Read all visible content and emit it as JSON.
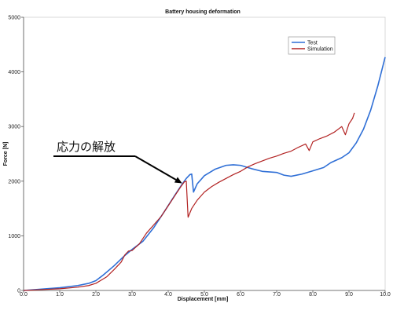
{
  "chart_data": {
    "type": "line",
    "title": "Battery housing deformation",
    "xlabel": "Displacement [mm]",
    "ylabel": "Force [N]",
    "xlim": [
      0,
      10
    ],
    "ylim": [
      0,
      5000
    ],
    "x_ticks": [
      "0.0",
      "1.0",
      "2.0",
      "3.0",
      "4.0",
      "5.0",
      "6.0",
      "7.0",
      "8.0",
      "9.0",
      "10.0"
    ],
    "y_ticks": [
      "0",
      "1000",
      "2000",
      "3000",
      "4000",
      "5000"
    ],
    "grid": false,
    "legend_position": "top-right",
    "annotation": {
      "text": "応力の解放",
      "points_to": [
        4.45,
        1990
      ]
    },
    "series": [
      {
        "name": "Test",
        "color": "#2f6fd6",
        "points": [
          [
            0.0,
            0
          ],
          [
            0.5,
            25
          ],
          [
            1.0,
            50
          ],
          [
            1.5,
            90
          ],
          [
            1.8,
            130
          ],
          [
            2.0,
            180
          ],
          [
            2.2,
            280
          ],
          [
            2.5,
            450
          ],
          [
            2.8,
            640
          ],
          [
            3.0,
            750
          ],
          [
            3.3,
            900
          ],
          [
            3.6,
            1150
          ],
          [
            3.9,
            1450
          ],
          [
            4.2,
            1760
          ],
          [
            4.4,
            1960
          ],
          [
            4.5,
            2050
          ],
          [
            4.6,
            2120
          ],
          [
            4.65,
            2130
          ],
          [
            4.7,
            1800
          ],
          [
            4.8,
            1950
          ],
          [
            5.0,
            2100
          ],
          [
            5.3,
            2220
          ],
          [
            5.6,
            2290
          ],
          [
            5.8,
            2300
          ],
          [
            6.0,
            2290
          ],
          [
            6.3,
            2230
          ],
          [
            6.6,
            2180
          ],
          [
            7.0,
            2160
          ],
          [
            7.2,
            2110
          ],
          [
            7.4,
            2090
          ],
          [
            7.7,
            2130
          ],
          [
            8.0,
            2190
          ],
          [
            8.3,
            2250
          ],
          [
            8.5,
            2340
          ],
          [
            8.8,
            2430
          ],
          [
            9.0,
            2520
          ],
          [
            9.2,
            2700
          ],
          [
            9.4,
            2950
          ],
          [
            9.6,
            3300
          ],
          [
            9.8,
            3750
          ],
          [
            10.0,
            4270
          ]
        ]
      },
      {
        "name": "Simulation",
        "color": "#b22222",
        "points": [
          [
            0.0,
            0
          ],
          [
            0.5,
            15
          ],
          [
            1.0,
            30
          ],
          [
            1.5,
            60
          ],
          [
            1.8,
            90
          ],
          [
            2.0,
            130
          ],
          [
            2.3,
            250
          ],
          [
            2.5,
            380
          ],
          [
            2.7,
            520
          ],
          [
            2.8,
            650
          ],
          [
            2.9,
            720
          ],
          [
            3.0,
            730
          ],
          [
            3.2,
            850
          ],
          [
            3.4,
            1050
          ],
          [
            3.6,
            1200
          ],
          [
            3.8,
            1350
          ],
          [
            4.0,
            1550
          ],
          [
            4.2,
            1750
          ],
          [
            4.35,
            1900
          ],
          [
            4.45,
            1990
          ],
          [
            4.5,
            2000
          ],
          [
            4.55,
            1340
          ],
          [
            4.65,
            1500
          ],
          [
            4.8,
            1650
          ],
          [
            5.0,
            1800
          ],
          [
            5.2,
            1900
          ],
          [
            5.4,
            1980
          ],
          [
            5.6,
            2050
          ],
          [
            5.8,
            2120
          ],
          [
            6.0,
            2180
          ],
          [
            6.2,
            2260
          ],
          [
            6.4,
            2320
          ],
          [
            6.6,
            2370
          ],
          [
            6.8,
            2420
          ],
          [
            7.0,
            2460
          ],
          [
            7.2,
            2510
          ],
          [
            7.4,
            2550
          ],
          [
            7.6,
            2620
          ],
          [
            7.8,
            2680
          ],
          [
            7.9,
            2560
          ],
          [
            8.0,
            2720
          ],
          [
            8.2,
            2780
          ],
          [
            8.4,
            2830
          ],
          [
            8.6,
            2900
          ],
          [
            8.8,
            3000
          ],
          [
            8.9,
            2850
          ],
          [
            9.0,
            3050
          ],
          [
            9.1,
            3150
          ],
          [
            9.15,
            3250
          ]
        ]
      }
    ]
  }
}
